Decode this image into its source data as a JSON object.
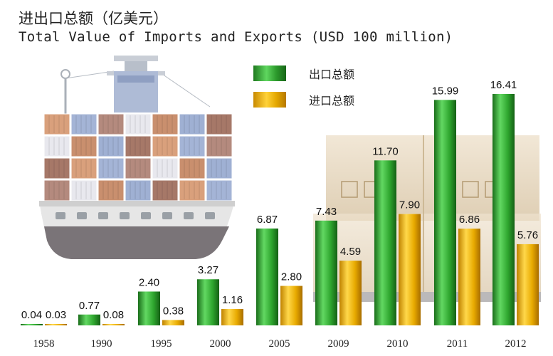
{
  "title_cn": "进出口总额（亿美元）",
  "title_en": "Total Value of Imports and Exports (USD 100 million)",
  "colors": {
    "export": "#2ea52e",
    "import": "#f2b400"
  },
  "chart_data": {
    "type": "bar",
    "title": "进出口总额（亿美元） Total Value of Imports and Exports (USD 100 million)",
    "categories": [
      "1958",
      "1990",
      "1995",
      "2000",
      "2005",
      "2009",
      "2010",
      "2011",
      "2012"
    ],
    "series": [
      {
        "name": "出口总额",
        "values": [
          0.04,
          0.77,
          2.4,
          3.27,
          6.87,
          7.43,
          11.7,
          15.99,
          16.41
        ]
      },
      {
        "name": "进口总额",
        "values": [
          0.03,
          0.08,
          0.38,
          1.16,
          2.8,
          4.59,
          7.9,
          6.86,
          5.76
        ]
      }
    ],
    "value_labels": [
      [
        "0.04",
        "0.77",
        "2.40",
        "3.27",
        "6.87",
        "7.43",
        "11.70",
        "15.99",
        "16.41"
      ],
      [
        "0.03",
        "0.08",
        "0.38",
        "1.16",
        "2.80",
        "4.59",
        "7.90",
        "6.86",
        "5.76"
      ]
    ],
    "ylim": [
      0,
      16.41
    ],
    "grid": false,
    "legend": "top-center"
  }
}
